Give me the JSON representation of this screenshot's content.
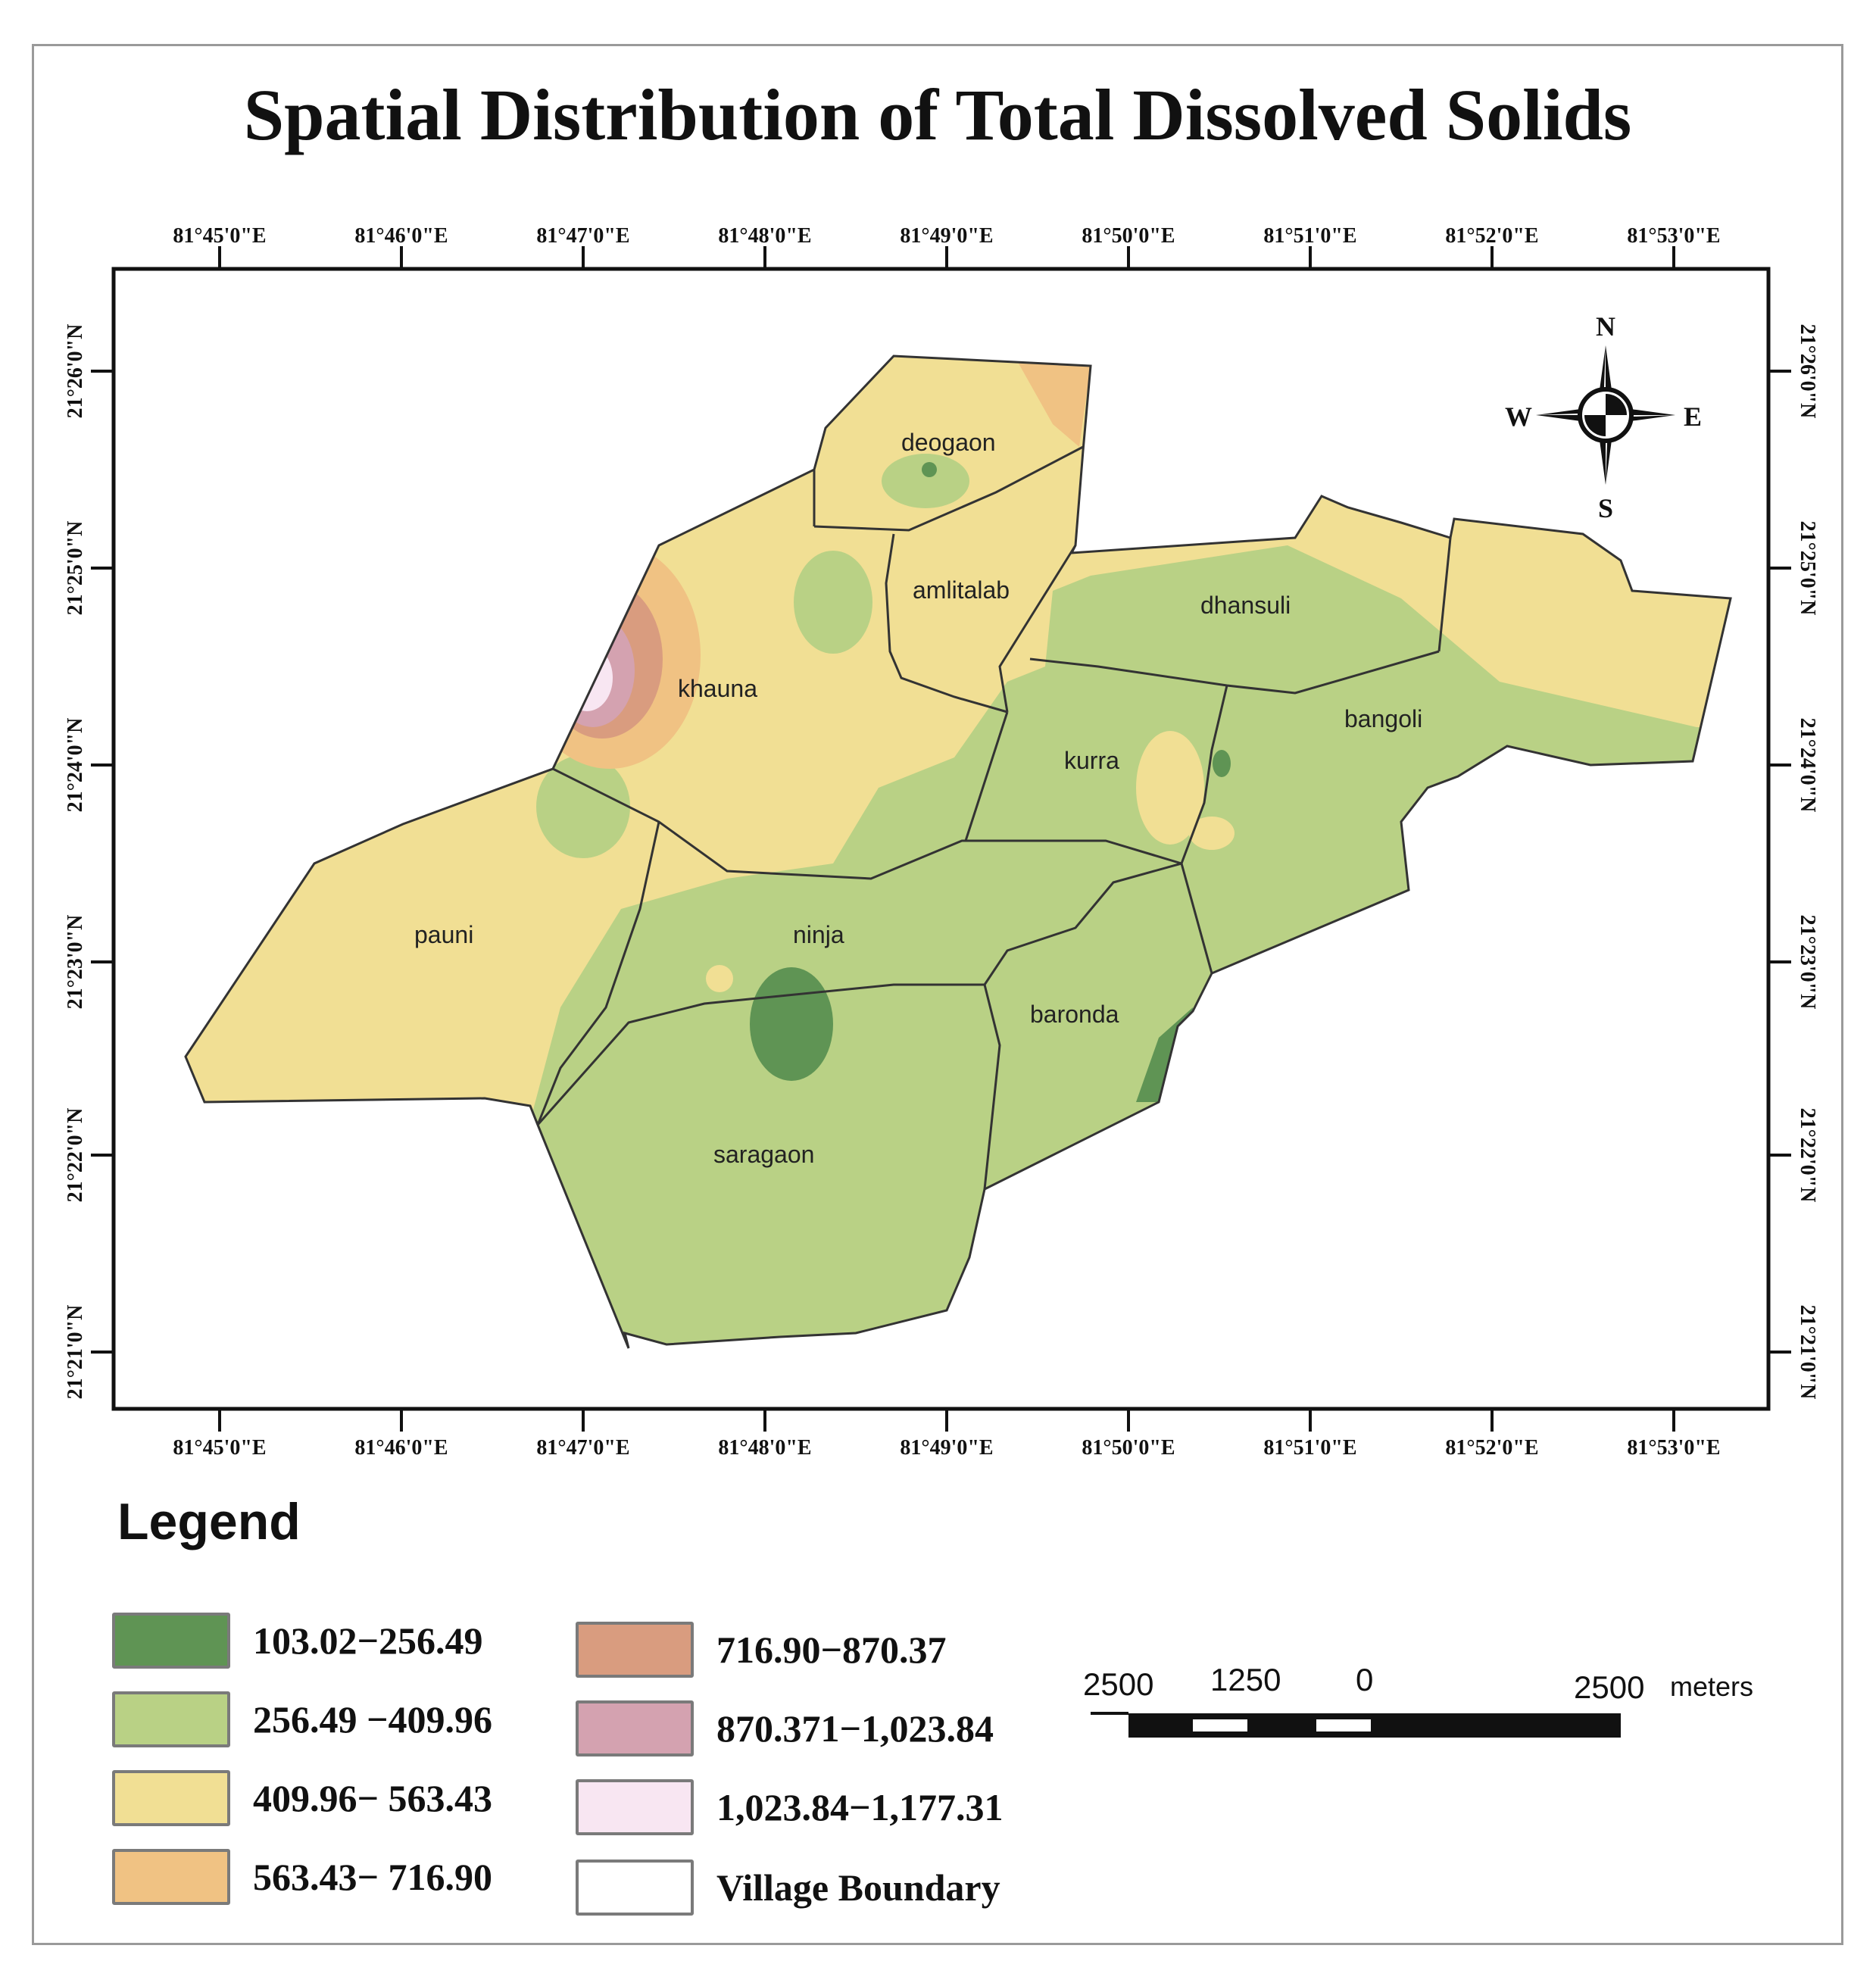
{
  "title": "Spatial Distribution of Total Dissolved Solids",
  "axes": {
    "lon_labels": [
      "81°45'0\"E",
      "81°46'0\"E",
      "81°47'0\"E",
      "81°48'0\"E",
      "81°49'0\"E",
      "81°50'0\"E",
      "81°51'0\"E",
      "81°52'0\"E",
      "81°53'0\"E"
    ],
    "lat_labels": [
      "21°26'0\"N",
      "21°25'0\"N",
      "21°24'0\"N",
      "21°23'0\"N",
      "21°22'0\"N",
      "21°21'0\"N"
    ]
  },
  "north_arrow": {
    "n": "N",
    "s": "S",
    "e": "E",
    "w": "W"
  },
  "villages": [
    "deogaon",
    "amlitalab",
    "dhansuli",
    "khauna",
    "bangoli",
    "kurra",
    "pauni",
    "ninja",
    "baronda",
    "saragaon"
  ],
  "legend": {
    "title": "Legend",
    "items": [
      {
        "label": "103.02−256.49",
        "color": "#5f9454"
      },
      {
        "label": "256.49 −409.96",
        "color": "#b9d185"
      },
      {
        "label": "409.96− 563.43",
        "color": "#f1df94"
      },
      {
        "label": "563.43− 716.90",
        "color": "#f0c283"
      },
      {
        "label": "716.90−870.37",
        "color": "#d99c7f"
      },
      {
        "label": "870.371−1,023.84",
        "color": "#d4a2b0"
      },
      {
        "label": "1,023.84−1,177.31",
        "color": "#f8e6f2"
      },
      {
        "label": "Village Boundary",
        "color": "#ffffff"
      }
    ]
  },
  "scale_bar": {
    "labels": [
      "2500",
      "1250",
      "0",
      "2500"
    ],
    "units": "meters"
  }
}
